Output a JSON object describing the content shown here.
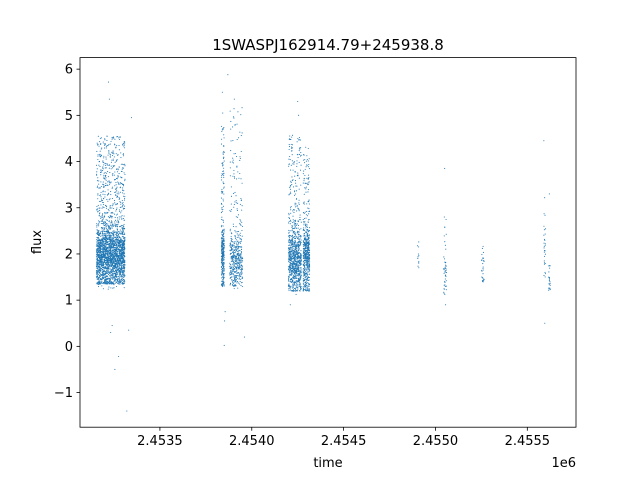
{
  "chart_data": {
    "type": "scatter",
    "title": "1SWASPJ162914.79+245938.8",
    "xlabel": "time",
    "ylabel": "flux",
    "x_offset_label": "1e6",
    "xlim": [
      2453065,
      2455765
    ],
    "ylim": [
      -1.75,
      6.25
    ],
    "x_ticks": [
      2453500,
      2454000,
      2454500,
      2455000,
      2455500
    ],
    "x_tick_labels": [
      "2.4535",
      "2.4540",
      "2.4545",
      "2.4550",
      "2.4555"
    ],
    "y_ticks": [
      -1,
      0,
      1,
      2,
      3,
      4,
      5,
      6
    ],
    "y_tick_labels": [
      "−1",
      "0",
      "1",
      "2",
      "3",
      "4",
      "5",
      "6"
    ],
    "grid": false,
    "marker_color": "#1f77b4",
    "series": [
      {
        "clusters": [
          {
            "x_start": 2453155,
            "x_end": 2453310,
            "count": 2600,
            "y_center": 2.0,
            "y_low": 1.35,
            "y_high": 4.55
          },
          {
            "x_start": 2453835,
            "x_end": 2453850,
            "count": 320,
            "y_center": 2.0,
            "y_low": 1.3,
            "y_high": 4.8
          },
          {
            "x_start": 2453880,
            "x_end": 2453950,
            "count": 480,
            "y_center": 1.9,
            "y_low": 1.3,
            "y_high": 5.2
          },
          {
            "x_start": 2454200,
            "x_end": 2454270,
            "count": 900,
            "y_center": 1.9,
            "y_low": 1.2,
            "y_high": 4.6
          },
          {
            "x_start": 2454280,
            "x_end": 2454315,
            "count": 550,
            "y_center": 2.0,
            "y_low": 1.2,
            "y_high": 4.35
          },
          {
            "x_start": 2454900,
            "x_end": 2454910,
            "count": 12,
            "y_center": 2.0,
            "y_low": 1.8,
            "y_high": 2.4
          },
          {
            "x_start": 2455045,
            "x_end": 2455060,
            "count": 45,
            "y_center": 1.65,
            "y_low": 1.2,
            "y_high": 2.8
          },
          {
            "x_start": 2455250,
            "x_end": 2455265,
            "count": 30,
            "y_center": 1.7,
            "y_low": 1.4,
            "y_high": 2.2
          },
          {
            "x_start": 2455590,
            "x_end": 2455600,
            "count": 28,
            "y_center": 2.1,
            "y_low": 1.5,
            "y_high": 3.4
          },
          {
            "x_start": 2455615,
            "x_end": 2455625,
            "count": 22,
            "y_center": 1.5,
            "y_low": 1.2,
            "y_high": 1.8
          }
        ],
        "points": [
          {
            "x": 2453220,
            "y": 5.72
          },
          {
            "x": 2453225,
            "y": 5.35
          },
          {
            "x": 2453240,
            "y": 0.45
          },
          {
            "x": 2453232,
            "y": 0.3
          },
          {
            "x": 2453255,
            "y": -0.5
          },
          {
            "x": 2453275,
            "y": -0.22
          },
          {
            "x": 2453320,
            "y": -1.4
          },
          {
            "x": 2453345,
            "y": 4.95
          },
          {
            "x": 2453330,
            "y": 0.35
          },
          {
            "x": 2453840,
            "y": 5.5
          },
          {
            "x": 2453842,
            "y": 5.05
          },
          {
            "x": 2453850,
            "y": 0.02
          },
          {
            "x": 2453852,
            "y": 0.55
          },
          {
            "x": 2453855,
            "y": 0.75
          },
          {
            "x": 2453870,
            "y": 5.88
          },
          {
            "x": 2453905,
            "y": 5.35
          },
          {
            "x": 2453960,
            "y": 0.2
          },
          {
            "x": 2454250,
            "y": 5.3
          },
          {
            "x": 2454255,
            "y": 5.0
          },
          {
            "x": 2454210,
            "y": 0.9
          },
          {
            "x": 2455050,
            "y": 3.85
          },
          {
            "x": 2455055,
            "y": 0.9
          },
          {
            "x": 2455590,
            "y": 4.45
          },
          {
            "x": 2455595,
            "y": 0.5
          },
          {
            "x": 2455620,
            "y": 3.3
          }
        ]
      }
    ]
  }
}
